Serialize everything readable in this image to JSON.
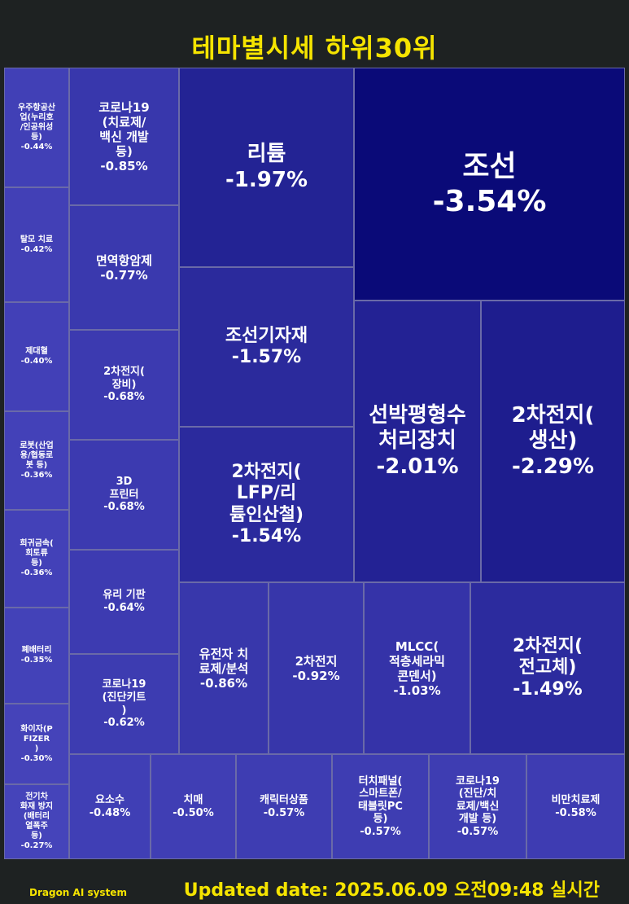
{
  "title": "테마별시세 하위30위",
  "footer": {
    "brand": "Dragon AI system",
    "updated": "Updated date: 2025.06.09 오전09:48 실시간"
  },
  "chart_data": {
    "type": "treemap",
    "title": "테마별시세 하위30위",
    "items": [
      {
        "name": "우주항공산\n업(누리호\n/인공위성\n등)",
        "value": -0.44,
        "label": "-0.44%"
      },
      {
        "name": "탈모 치료",
        "value": -0.42,
        "label": "-0.42%"
      },
      {
        "name": "제대혈",
        "value": -0.4,
        "label": "-0.40%"
      },
      {
        "name": "로봇(산업\n용/협동로\n봇 등)",
        "value": -0.36,
        "label": "-0.36%"
      },
      {
        "name": "희귀금속(\n희토류\n등)",
        "value": -0.36,
        "label": "-0.36%"
      },
      {
        "name": "폐배터리",
        "value": -0.35,
        "label": "-0.35%"
      },
      {
        "name": "화이자(P\nFIZER\n)",
        "value": -0.3,
        "label": "-0.30%"
      },
      {
        "name": "전기차\n화재 방지\n(배터리\n열폭주\n등)",
        "value": -0.27,
        "label": "-0.27%"
      },
      {
        "name": "코로나19\n(치료제/\n백신 개발\n등)",
        "value": -0.85,
        "label": "-0.85%"
      },
      {
        "name": "면역항암제",
        "value": -0.77,
        "label": "-0.77%"
      },
      {
        "name": "2차전지(\n장비)",
        "value": -0.68,
        "label": "-0.68%"
      },
      {
        "name": "3D\n프린터",
        "value": -0.68,
        "label": "-0.68%"
      },
      {
        "name": "유리 기판",
        "value": -0.64,
        "label": "-0.64%"
      },
      {
        "name": "코로나19\n(진단키트\n)",
        "value": -0.62,
        "label": "-0.62%"
      },
      {
        "name": "리튬",
        "value": -1.97,
        "label": "-1.97%"
      },
      {
        "name": "조선기자재",
        "value": -1.57,
        "label": "-1.57%"
      },
      {
        "name": "2차전지(\nLFP/리\n튬인산철)",
        "value": -1.54,
        "label": "-1.54%"
      },
      {
        "name": "조선",
        "value": -3.54,
        "label": "-3.54%"
      },
      {
        "name": "선박평형수\n처리장치",
        "value": -2.01,
        "label": "-2.01%"
      },
      {
        "name": "2차전지(\n생산)",
        "value": -2.29,
        "label": "-2.29%"
      },
      {
        "name": "유전자 치\n료제/분석",
        "value": -0.86,
        "label": "-0.86%"
      },
      {
        "name": "2차전지",
        "value": -0.92,
        "label": "-0.92%"
      },
      {
        "name": "MLCC(\n적층세라믹\n콘덴서)",
        "value": -1.03,
        "label": "-1.03%"
      },
      {
        "name": "2차전지(\n전고체)",
        "value": -1.49,
        "label": "-1.49%"
      },
      {
        "name": "요소수",
        "value": -0.48,
        "label": "-0.48%"
      },
      {
        "name": "치매",
        "value": -0.5,
        "label": "-0.50%"
      },
      {
        "name": "캐릭터상품",
        "value": -0.57,
        "label": "-0.57%"
      },
      {
        "name": "터치패널(\n스마트폰/\n태블릿PC\n등)",
        "value": -0.57,
        "label": "-0.57%"
      },
      {
        "name": "코로나19\n(진단/치\n료제/백신\n개발 등)",
        "value": -0.57,
        "label": "-0.57%"
      },
      {
        "name": "비만치료제",
        "value": -0.58,
        "label": "-0.58%"
      }
    ]
  }
}
